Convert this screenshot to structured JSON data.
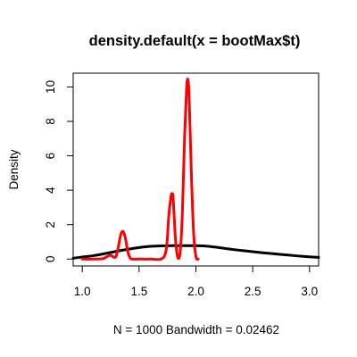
{
  "chart_data": {
    "type": "line",
    "title": "density.default(x = bootMax$t)",
    "xlabel": "N = 1000   Bandwidth = 0.02462",
    "ylabel": "Density",
    "xlim": [
      0.92,
      3.08
    ],
    "ylim": [
      -0.4,
      10.8
    ],
    "x_ticks": [
      1.0,
      1.5,
      2.0,
      2.5,
      3.0
    ],
    "x_tick_labels": [
      "1.0",
      "1.5",
      "2.0",
      "2.5",
      "3.0"
    ],
    "y_ticks": [
      0,
      2,
      4,
      6,
      8,
      10
    ],
    "y_tick_labels": [
      "0",
      "2",
      "4",
      "6",
      "8",
      "10"
    ],
    "grid": false,
    "series": [
      {
        "color": "#000000",
        "x": [
          0.92,
          1.0,
          1.1,
          1.2,
          1.3,
          1.4,
          1.5,
          1.6,
          1.7,
          1.8,
          1.9,
          2.0,
          2.1,
          2.2,
          2.3,
          2.4,
          2.5,
          2.6,
          2.7,
          2.8,
          2.9,
          3.0,
          3.08
        ],
        "values": [
          0.05,
          0.12,
          0.2,
          0.32,
          0.45,
          0.57,
          0.67,
          0.74,
          0.77,
          0.78,
          0.78,
          0.78,
          0.75,
          0.67,
          0.58,
          0.5,
          0.43,
          0.36,
          0.3,
          0.24,
          0.18,
          0.13,
          0.1
        ]
      },
      {
        "color": "#ff0000",
        "x": [
          1.0,
          1.1,
          1.18,
          1.22,
          1.25,
          1.28,
          1.3,
          1.32,
          1.34,
          1.36,
          1.38,
          1.4,
          1.42,
          1.44,
          1.5,
          1.6,
          1.7,
          1.74,
          1.76,
          1.78,
          1.79,
          1.8,
          1.82,
          1.84,
          1.86,
          1.88,
          1.9,
          1.92,
          1.93,
          1.94,
          1.96,
          1.98,
          2.0,
          2.02
        ],
        "values": [
          0.0,
          0.0,
          0.02,
          0.15,
          0.22,
          0.1,
          0.2,
          0.8,
          1.45,
          1.6,
          1.2,
          0.45,
          0.08,
          0.0,
          0.0,
          0.0,
          0.02,
          0.6,
          2.4,
          3.6,
          3.8,
          3.5,
          1.2,
          0.1,
          0.3,
          2.5,
          7.0,
          10.2,
          10.4,
          9.5,
          5.0,
          1.5,
          0.15,
          0.0
        ]
      }
    ]
  }
}
